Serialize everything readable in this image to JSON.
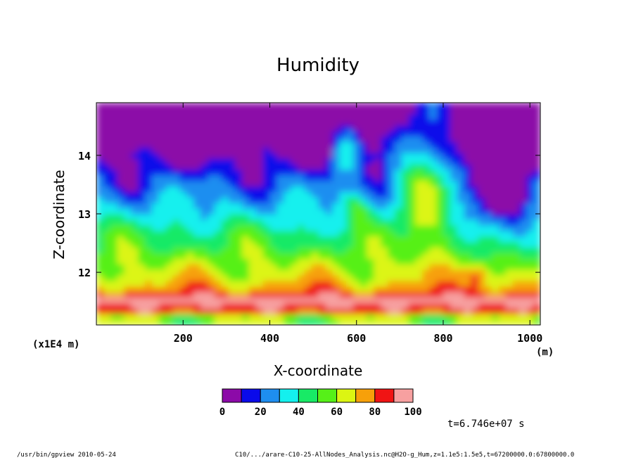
{
  "chart_data": {
    "type": "heatmap",
    "title": "Humidity",
    "xlabel": "X-coordinate",
    "ylabel": "Z-coordinate",
    "x_unit": "(m)",
    "y_unit": "(x1E4 m)",
    "xlim": [
      0,
      1024
    ],
    "ylim": [
      11.1,
      14.9
    ],
    "x_ticks": [
      200,
      400,
      600,
      800,
      1000
    ],
    "y_ticks": [
      12,
      13,
      14
    ],
    "colorbar": {
      "levels": [
        0,
        10,
        20,
        30,
        40,
        50,
        60,
        70,
        80,
        90,
        100
      ],
      "tick_labels": [
        "0",
        "20",
        "40",
        "60",
        "80",
        "100"
      ],
      "colors": [
        "#8c0aa8",
        "#0a0aea",
        "#1e8ef0",
        "#14f0ee",
        "#18ea66",
        "#56f018",
        "#dcf512",
        "#f7a00a",
        "#f01414",
        "#f7a0a0"
      ]
    },
    "time": "t=6.746e+07 s"
  },
  "footer": {
    "left": "/usr/bin/gpview   2010-05-24",
    "right": "C10/.../arare-C10-25-AllNodes_Analysis.nc@H2O-g_Hum,z=1.1e5:1.5e5,t=67200000.0:67800000.0"
  }
}
